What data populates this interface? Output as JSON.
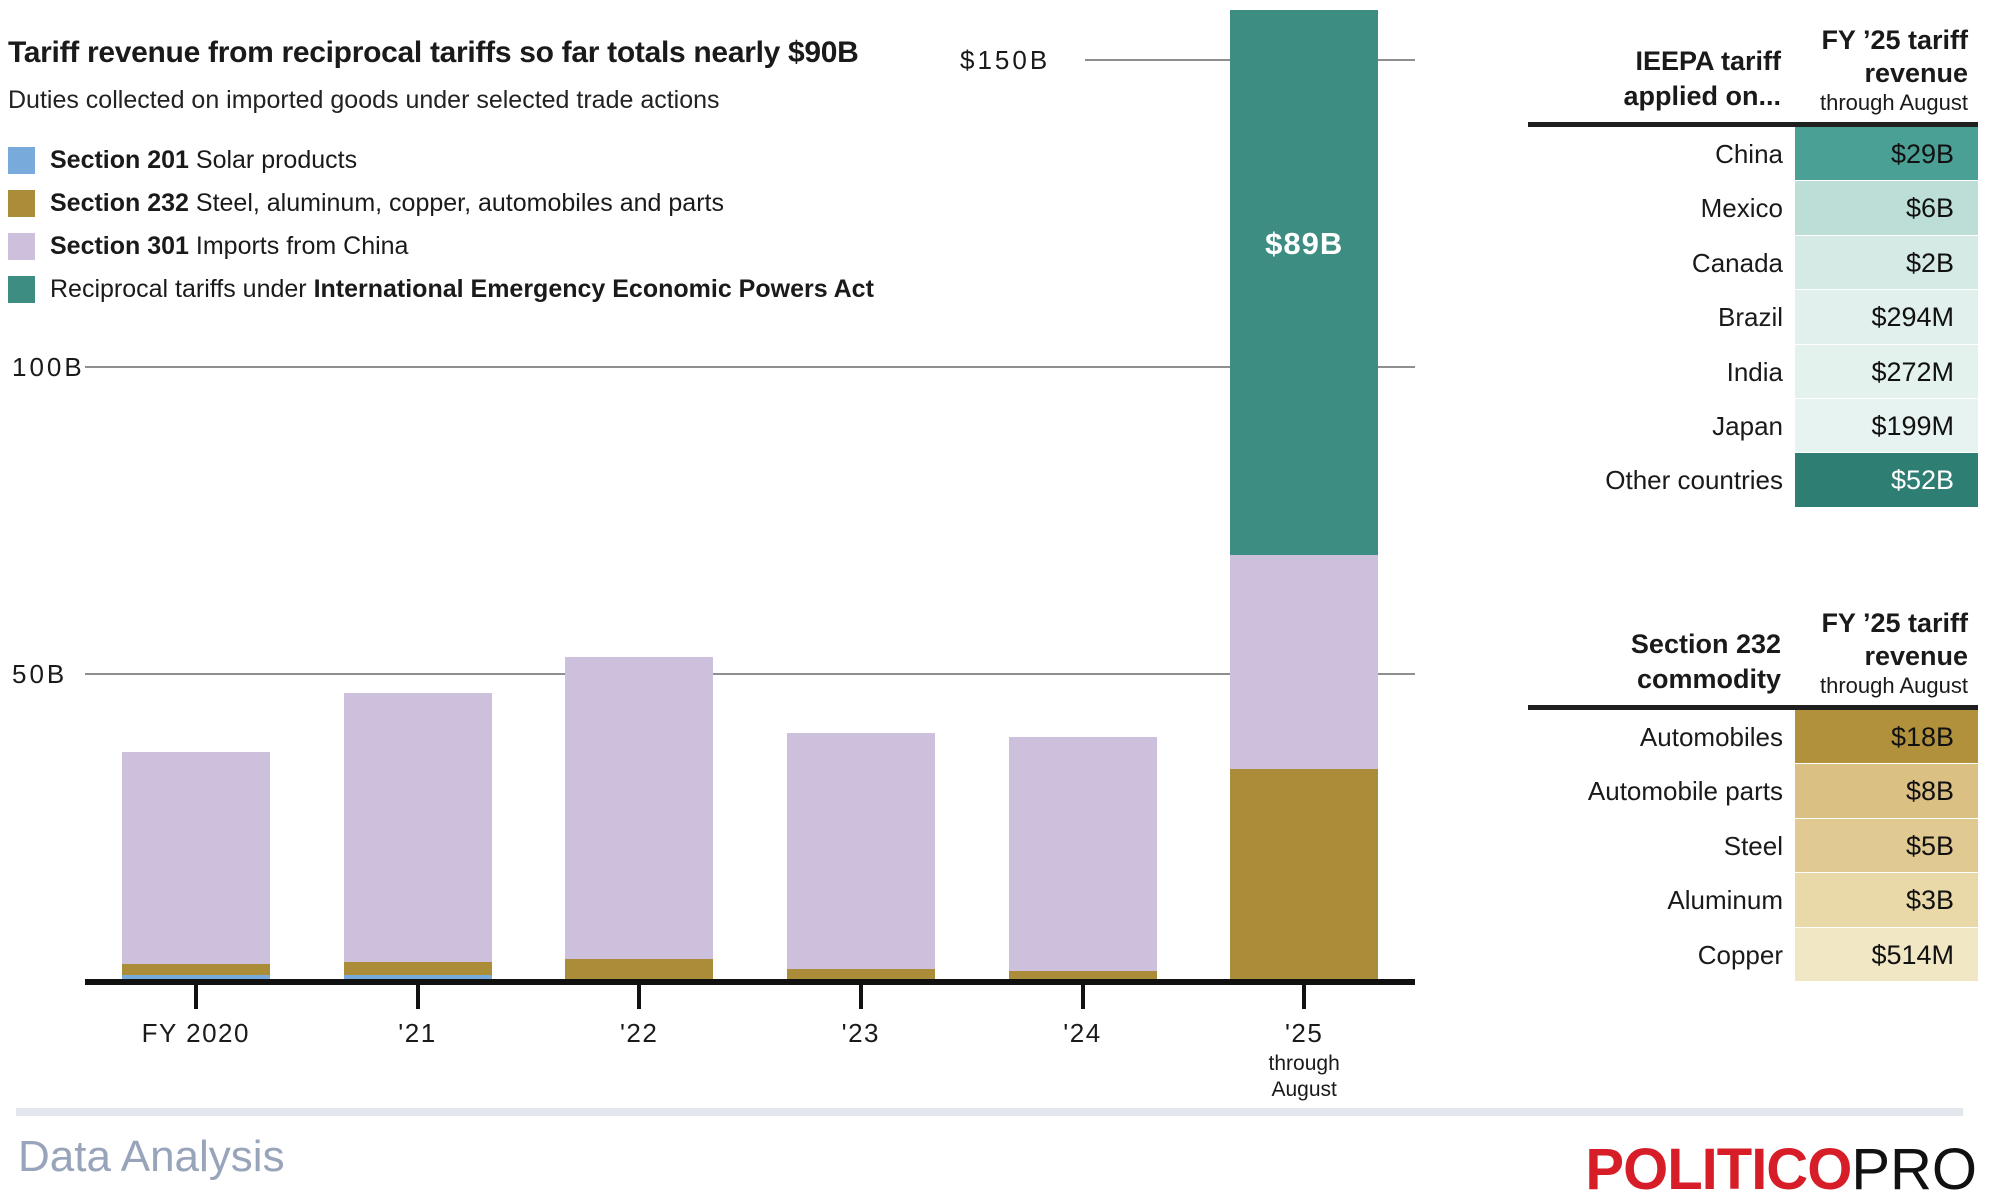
{
  "title": "Tariff revenue from reciprocal tariffs so far totals nearly $90B",
  "subtitle": "Duties collected on imported goods under selected trade actions",
  "legend": {
    "items": [
      {
        "key": "section_201",
        "lead": "",
        "strong": "Section 201",
        "rest": " Solar products",
        "color": "#78aadb"
      },
      {
        "key": "section_232",
        "lead": "",
        "strong": "Section 232",
        "rest": " Steel, aluminum, copper, automobiles and parts",
        "color": "#aa8c39"
      },
      {
        "key": "section_301",
        "lead": "",
        "strong": "Section 301",
        "rest": " Imports from China",
        "color": "#cdc0dc"
      },
      {
        "key": "ieepa",
        "lead": "Reciprocal tariffs under ",
        "strong": "International Emergency Economic Powers Act",
        "rest": "",
        "color": "#3e8d82"
      }
    ]
  },
  "chart_data": {
    "type": "bar",
    "stacked": true,
    "unit": "billions of USD",
    "title": "Tariff revenue from reciprocal tariffs so far totals nearly $90B",
    "xlabel": "Fiscal year",
    "ylabel": "Tariff revenue",
    "ylim": [
      0,
      160
    ],
    "grid": true,
    "categories": [
      "FY 2020",
      "'21",
      "'22",
      "'23",
      "'24",
      "'25"
    ],
    "category_note": {
      "index": 5,
      "lines": [
        "through",
        "August"
      ]
    },
    "series": [
      {
        "name": "Section 201 Solar products",
        "key": "section_201",
        "color": "#78aadb",
        "values": [
          0.9,
          0.9,
          0,
          0,
          0,
          0
        ]
      },
      {
        "name": "Section 232 Steel, aluminum, copper, automobiles and parts",
        "key": "section_232",
        "color": "#aa8c39",
        "values": [
          1.8,
          2.2,
          3.6,
          1.9,
          1.6,
          34.5
        ]
      },
      {
        "name": "Section 301 Imports from China",
        "key": "section_301",
        "color": "#cdc0dc",
        "values": [
          34.6,
          43.8,
          49.2,
          38.5,
          38.1,
          34.9
        ]
      },
      {
        "name": "Reciprocal tariffs under IEEPA",
        "key": "ieepa",
        "color": "#3e8d82",
        "values": [
          0,
          0,
          0,
          0,
          0,
          88.9
        ]
      }
    ],
    "bar_label": {
      "category_index": 5,
      "series_key": "ieepa",
      "text": "$89B"
    },
    "y_axis": {
      "gridlines": [
        {
          "label": "$150B",
          "value": 150,
          "short": true
        },
        {
          "label": "100B",
          "value": 100,
          "short": false
        },
        {
          "label": "50B",
          "value": 50,
          "short": false
        }
      ]
    }
  },
  "tables": [
    {
      "id": "ieepa-countries",
      "header_label_lines": [
        "IEEPA tariff",
        "applied on..."
      ],
      "header_value_lines": [
        "FY ’25 tariff",
        "revenue"
      ],
      "header_value_sub": "through August",
      "rows": [
        {
          "label": "China",
          "value": "$29B",
          "bg": "#4ba096",
          "fg": "#111111"
        },
        {
          "label": "Mexico",
          "value": "$6B",
          "bg": "#bcded7",
          "fg": "#111111"
        },
        {
          "label": "Canada",
          "value": "$2B",
          "bg": "#d6eae5",
          "fg": "#111111"
        },
        {
          "label": "Brazil",
          "value": "$294M",
          "bg": "#e1f0ec",
          "fg": "#111111"
        },
        {
          "label": "India",
          "value": "$272M",
          "bg": "#e4f2ee",
          "fg": "#111111"
        },
        {
          "label": "Japan",
          "value": "$199M",
          "bg": "#e7f3f0",
          "fg": "#111111"
        },
        {
          "label": "Other countries",
          "value": "$52B",
          "bg": "#2f7e73",
          "fg": "#ffffff"
        }
      ]
    },
    {
      "id": "section-232-commodities",
      "header_label_lines": [
        "Section 232",
        "commodity"
      ],
      "header_value_lines": [
        "FY ’25 tariff",
        "revenue"
      ],
      "header_value_sub": "through August",
      "rows": [
        {
          "label": "Automobiles",
          "value": "$18B",
          "bg": "#b2913d",
          "fg": "#111111"
        },
        {
          "label": "Automobile parts",
          "value": "$8B",
          "bg": "#dbc084",
          "fg": "#111111"
        },
        {
          "label": "Steel",
          "value": "$5B",
          "bg": "#e1ca92",
          "fg": "#111111"
        },
        {
          "label": "Aluminum",
          "value": "$3B",
          "bg": "#e9d9a8",
          "fg": "#111111"
        },
        {
          "label": "Copper",
          "value": "$514M",
          "bg": "#f2e7c5",
          "fg": "#111111"
        }
      ]
    }
  ],
  "footer": {
    "left": "Data Analysis",
    "brand": {
      "politico": "POLITICO",
      "pro": "PRO"
    }
  }
}
